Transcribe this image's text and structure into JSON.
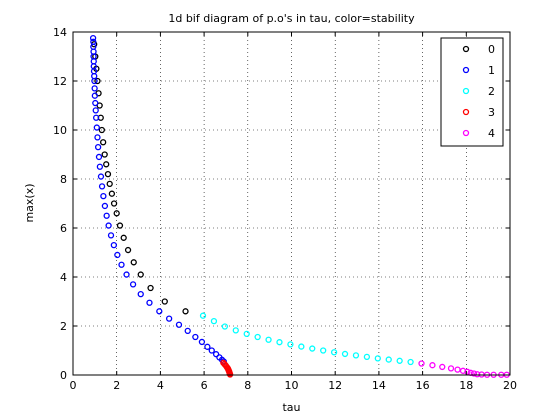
{
  "chart_data": {
    "type": "scatter",
    "title": "1d bif diagram of p.o's in tau, color=stability",
    "xlabel": "tau",
    "ylabel": "max(x)",
    "xlim": [
      0,
      20
    ],
    "ylim": [
      0,
      14
    ],
    "x_ticks": [
      "0",
      "2",
      "4",
      "6",
      "8",
      "10",
      "12",
      "14",
      "16",
      "18",
      "20"
    ],
    "y_ticks": [
      "0",
      "2",
      "4",
      "6",
      "8",
      "10",
      "12",
      "14"
    ],
    "grid": true,
    "legend_position": "top-right",
    "marker": "circle",
    "series": [
      {
        "name": "0",
        "color": "#000000",
        "x": [
          0.97,
          1.02,
          1.07,
          1.12,
          1.17,
          1.22,
          1.27,
          1.32,
          1.38,
          1.45,
          1.52,
          1.6,
          1.68,
          1.78,
          1.88,
          2.0,
          2.15,
          2.32,
          2.52,
          2.78,
          3.1,
          3.55,
          4.2,
          5.15
        ],
        "y": [
          13.5,
          13.0,
          12.5,
          12.0,
          11.5,
          11.0,
          10.5,
          10.0,
          9.5,
          9.0,
          8.6,
          8.2,
          7.8,
          7.4,
          7.0,
          6.6,
          6.1,
          5.6,
          5.1,
          4.6,
          4.1,
          3.55,
          3.0,
          2.6
        ]
      },
      {
        "name": "1",
        "color": "#0000ff",
        "x": [
          0.92,
          0.93,
          0.93,
          0.94,
          0.94,
          0.95,
          0.95,
          0.96,
          0.97,
          0.98,
          0.99,
          1.0,
          1.02,
          1.04,
          1.06,
          1.09,
          1.12,
          1.15,
          1.19,
          1.23,
          1.28,
          1.33,
          1.39,
          1.46,
          1.54,
          1.63,
          1.74,
          1.87,
          2.03,
          2.22,
          2.45,
          2.75,
          3.1,
          3.5,
          3.95,
          4.4,
          4.85,
          5.25,
          5.6,
          5.9,
          6.15,
          6.35,
          6.55,
          6.7,
          6.82,
          6.9
        ],
        "y": [
          13.75,
          13.6,
          13.4,
          13.2,
          13.0,
          12.8,
          12.6,
          12.4,
          12.2,
          12.0,
          11.7,
          11.4,
          11.1,
          10.8,
          10.5,
          10.1,
          9.7,
          9.3,
          8.9,
          8.5,
          8.1,
          7.7,
          7.3,
          6.9,
          6.5,
          6.1,
          5.7,
          5.3,
          4.9,
          4.5,
          4.1,
          3.7,
          3.3,
          2.95,
          2.6,
          2.3,
          2.05,
          1.8,
          1.55,
          1.35,
          1.15,
          1.0,
          0.85,
          0.72,
          0.62,
          0.55
        ]
      },
      {
        "name": "2",
        "color": "#00ffff",
        "x": [
          5.95,
          6.45,
          6.95,
          7.45,
          7.95,
          8.45,
          8.95,
          9.45,
          9.95,
          10.45,
          10.95,
          11.45,
          11.95,
          12.45,
          12.95,
          13.45,
          13.95,
          14.45,
          14.95,
          15.45
        ],
        "y": [
          2.42,
          2.2,
          1.98,
          1.82,
          1.68,
          1.55,
          1.44,
          1.34,
          1.25,
          1.16,
          1.08,
          1.0,
          0.93,
          0.86,
          0.8,
          0.74,
          0.68,
          0.63,
          0.58,
          0.53
        ]
      },
      {
        "name": "3",
        "color": "#ff0000",
        "x": [
          6.88,
          6.93,
          6.98,
          7.02,
          7.06,
          7.09,
          7.11,
          7.13,
          7.15,
          7.16,
          7.17,
          7.18,
          7.19
        ],
        "y": [
          0.5,
          0.45,
          0.4,
          0.35,
          0.3,
          0.26,
          0.22,
          0.18,
          0.14,
          0.1,
          0.07,
          0.04,
          0.02
        ]
      },
      {
        "name": "4",
        "color": "#ff00ff",
        "x": [
          15.95,
          16.45,
          16.9,
          17.3,
          17.6,
          17.85,
          18.05,
          18.2,
          18.35,
          18.5,
          18.7,
          18.95,
          19.25,
          19.6,
          19.85
        ],
        "y": [
          0.47,
          0.4,
          0.33,
          0.27,
          0.22,
          0.17,
          0.13,
          0.09,
          0.06,
          0.03,
          0.02,
          0.01,
          0.01,
          0.01,
          0.01
        ]
      }
    ]
  }
}
